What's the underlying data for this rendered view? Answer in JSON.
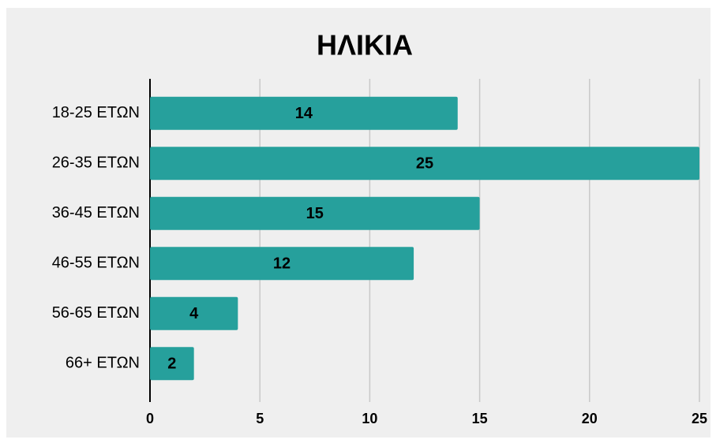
{
  "chart_data": {
    "type": "bar",
    "orientation": "horizontal",
    "title": "ΗΛΙΚΙΑ",
    "categories": [
      "18-25 ΕΤΩΝ",
      "26-35 ΕΤΩΝ",
      "36-45 ΕΤΩΝ",
      "46-55 ΕΤΩΝ",
      "56-65 ΕΤΩΝ",
      "66+ ΕΤΩΝ"
    ],
    "values": [
      14,
      25,
      15,
      12,
      4,
      2
    ],
    "color": "#26a09c",
    "xlim": [
      0,
      25
    ],
    "xticks": [
      0,
      5,
      10,
      15,
      20,
      25
    ],
    "grid": true,
    "data_labels": true
  }
}
